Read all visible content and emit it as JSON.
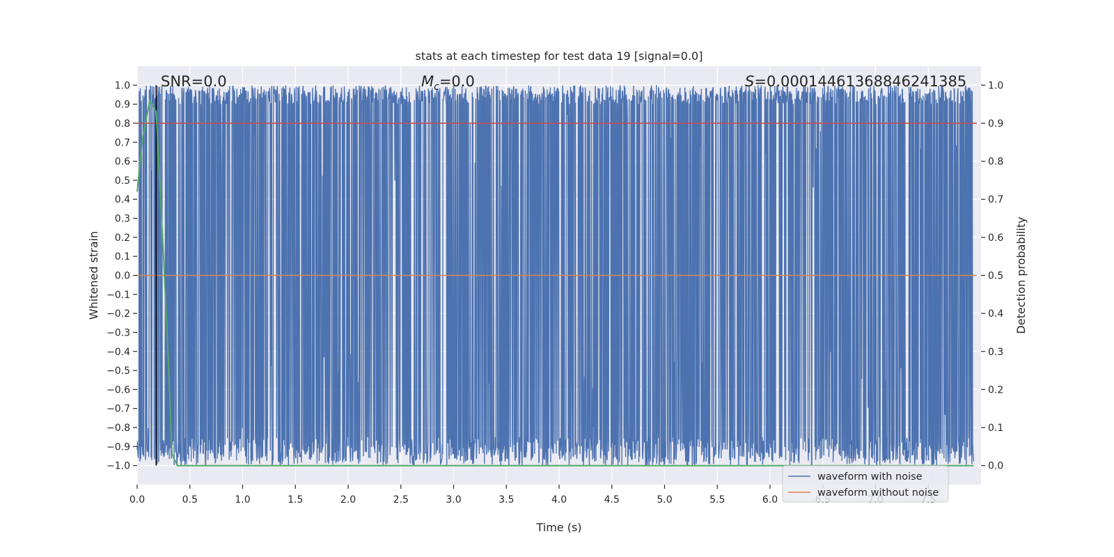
{
  "chart_data": {
    "type": "line",
    "title": "stats at each timestep for test data 19 [signal=0.0]",
    "xlabel": "Time (s)",
    "ylabel_left": "Whitened strain",
    "ylabel_right": "Detection probability",
    "xlim": [
      0.0,
      8.0
    ],
    "ylim_left": [
      -1.1,
      1.1
    ],
    "ylim_right": [
      -0.05,
      1.05
    ],
    "x_ticks": [
      0.0,
      0.5,
      1.0,
      1.5,
      2.0,
      2.5,
      3.0,
      3.5,
      4.0,
      4.5,
      5.0,
      5.5,
      6.0,
      6.5,
      7.0,
      7.5
    ],
    "x_tick_labels": [
      "0.0",
      "0.5",
      "1.0",
      "1.5",
      "2.0",
      "2.5",
      "3.0",
      "3.5",
      "4.0",
      "4.5",
      "5.0",
      "5.5",
      "6.0",
      "6.5",
      "7.0",
      "7.5"
    ],
    "y_left_ticks": [
      1.0,
      0.9,
      0.8,
      0.7,
      0.6,
      0.5,
      0.4,
      0.3,
      0.2,
      0.1,
      0.0,
      -0.1,
      -0.2,
      -0.3,
      -0.4,
      -0.5,
      -0.6,
      -0.7,
      -0.8,
      -0.9,
      -1.0
    ],
    "y_left_tick_labels": [
      "1.0",
      "0.9",
      "0.8",
      "0.7",
      "0.6",
      "0.5",
      "0.4",
      "0.3",
      "0.2",
      "0.1",
      "0.0",
      "−0.1",
      "−0.2",
      "−0.3",
      "−0.4",
      "−0.5",
      "−0.6",
      "−0.7",
      "−0.8",
      "−0.9",
      "−1.0"
    ],
    "y_right_ticks": [
      1.0,
      0.9,
      0.8,
      0.7,
      0.6,
      0.5,
      0.4,
      0.3,
      0.2,
      0.1,
      0.0
    ],
    "y_right_tick_labels": [
      "1.0",
      "0.9",
      "0.8",
      "0.7",
      "0.6",
      "0.5",
      "0.4",
      "0.3",
      "0.2",
      "0.1",
      "0.0"
    ],
    "annotations": {
      "snr": "SNR=0.0",
      "mc_symbol": "M",
      "mc_sub": "c",
      "mc_value": "=0.0",
      "s_symbol": "S",
      "s_value": "=0.00014461368846241385"
    },
    "series": [
      {
        "name": "waveform with noise",
        "axis": "left",
        "color": "#4c72b0",
        "description": "noisy whitened strain filling roughly -1.0 to 1.0 across 0 to 8 s",
        "peak_range": [
          0.9,
          1.0
        ],
        "trough_range": [
          -1.0,
          -0.85
        ]
      },
      {
        "name": "waveform without noise",
        "axis": "left",
        "color": "#dd8452",
        "values_constant": 0.0
      },
      {
        "name": "detection probability",
        "axis": "right",
        "color": "#55a868",
        "x": [
          0.0,
          0.05,
          0.12,
          0.18,
          0.25,
          0.3,
          0.33,
          0.38,
          8.0
        ],
        "y": [
          0.72,
          0.86,
          0.96,
          0.93,
          0.55,
          0.25,
          0.03,
          0.0,
          0.0
        ]
      }
    ],
    "threshold_line": {
      "axis": "right",
      "value": 0.9,
      "color": "#c44e52"
    },
    "marker_line": {
      "x": 0.18,
      "color": "#000000"
    },
    "legend": {
      "placement": "lower-right",
      "entries": [
        {
          "label": "waveform with noise",
          "color": "#4c72b0"
        },
        {
          "label": "waveform without noise",
          "color": "#dd8452"
        }
      ]
    },
    "colors": {
      "plot_background": "#eaeaf2",
      "grid": "#ffffff"
    }
  }
}
